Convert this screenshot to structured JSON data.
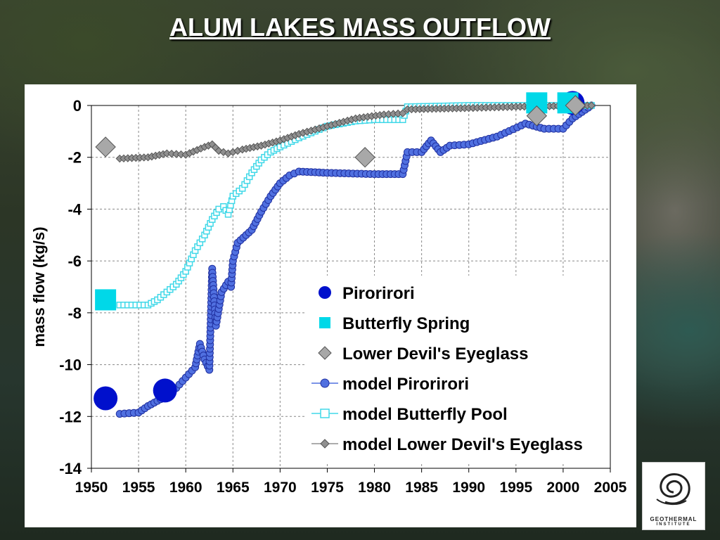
{
  "slide_title": "ALUM LAKES MASS OUTFLOW",
  "logo": {
    "text": "GEOTHERMAL",
    "subtext": "INSTITUTE"
  },
  "chart_data": {
    "type": "line",
    "title": "",
    "xlabel": "",
    "ylabel": "mass flow (kg/s)",
    "xlim": [
      1950,
      2005
    ],
    "ylim": [
      -14,
      0
    ],
    "x_ticks": [
      1950,
      1955,
      1960,
      1965,
      1970,
      1975,
      1980,
      1985,
      1990,
      1995,
      2000,
      2005
    ],
    "y_ticks": [
      0,
      -2,
      -4,
      -6,
      -8,
      -10,
      -12,
      -14
    ],
    "grid": true,
    "legend_position": "inside-lower-right",
    "series": [
      {
        "name": "Pirorirori",
        "kind": "observed",
        "marker": "circle",
        "color": "#0010cc",
        "points": [
          [
            1951.5,
            -11.3
          ],
          [
            1957.8,
            -11.0
          ],
          [
            2001.0,
            0.1
          ]
        ]
      },
      {
        "name": "Butterfly Spring",
        "kind": "observed",
        "marker": "square",
        "color": "#00d8e8",
        "points": [
          [
            1951.5,
            -7.5
          ],
          [
            1997.2,
            0.1
          ],
          [
            2000.5,
            0.1
          ]
        ]
      },
      {
        "name": "Lower Devil's Eyeglass",
        "kind": "observed",
        "marker": "diamond",
        "color": "#a8a8a8",
        "points": [
          [
            1951.5,
            -1.6
          ],
          [
            1979.0,
            -2.0
          ],
          [
            1997.2,
            -0.4
          ],
          [
            2001.3,
            0.0
          ]
        ]
      },
      {
        "name": "model Pirorirori",
        "kind": "model",
        "marker": "circle",
        "color": "#5070e0",
        "points": [
          [
            1953,
            -11.9
          ],
          [
            1955,
            -11.85
          ],
          [
            1956,
            -11.6
          ],
          [
            1957,
            -11.4
          ],
          [
            1958,
            -11.2
          ],
          [
            1959,
            -10.9
          ],
          [
            1960,
            -10.5
          ],
          [
            1961,
            -10.1
          ],
          [
            1961.5,
            -9.2
          ],
          [
            1962,
            -9.8
          ],
          [
            1962.5,
            -10.2
          ],
          [
            1962.8,
            -6.3
          ],
          [
            1963.2,
            -8.5
          ],
          [
            1963.8,
            -7.2
          ],
          [
            1964.5,
            -6.8
          ],
          [
            1964.8,
            -7.0
          ],
          [
            1965,
            -6.0
          ],
          [
            1965.5,
            -5.3
          ],
          [
            1967,
            -4.8
          ],
          [
            1968,
            -4.1
          ],
          [
            1969,
            -3.5
          ],
          [
            1970,
            -3.0
          ],
          [
            1971,
            -2.7
          ],
          [
            1972,
            -2.55
          ],
          [
            1975,
            -2.6
          ],
          [
            1980,
            -2.65
          ],
          [
            1983,
            -2.65
          ],
          [
            1983.5,
            -1.8
          ],
          [
            1985,
            -1.8
          ],
          [
            1986,
            -1.35
          ],
          [
            1987,
            -1.8
          ],
          [
            1988,
            -1.55
          ],
          [
            1990,
            -1.5
          ],
          [
            1993,
            -1.2
          ],
          [
            1996,
            -0.7
          ],
          [
            1998,
            -0.9
          ],
          [
            2000,
            -0.9
          ],
          [
            2001,
            -0.5
          ],
          [
            2002,
            -0.25
          ],
          [
            2003,
            0.0
          ]
        ]
      },
      {
        "name": "model Butterfly Pool",
        "kind": "model",
        "marker": "square-open",
        "color": "#40d8e8",
        "points": [
          [
            1953,
            -7.7
          ],
          [
            1956,
            -7.7
          ],
          [
            1957,
            -7.5
          ],
          [
            1958,
            -7.2
          ],
          [
            1959,
            -6.9
          ],
          [
            1960,
            -6.4
          ],
          [
            1961,
            -5.6
          ],
          [
            1962,
            -5.0
          ],
          [
            1962.8,
            -4.4
          ],
          [
            1963.5,
            -4.0
          ],
          [
            1964,
            -3.9
          ],
          [
            1964.5,
            -4.2
          ],
          [
            1965,
            -3.5
          ],
          [
            1966,
            -3.2
          ],
          [
            1967,
            -2.6
          ],
          [
            1968,
            -2.1
          ],
          [
            1969,
            -1.8
          ],
          [
            1970,
            -1.6
          ],
          [
            1972,
            -1.25
          ],
          [
            1975,
            -0.8
          ],
          [
            1978,
            -0.6
          ],
          [
            1980,
            -0.55
          ],
          [
            1983,
            -0.55
          ],
          [
            1983.5,
            -0.05
          ],
          [
            1990,
            0.0
          ],
          [
            2003,
            0.0
          ]
        ]
      },
      {
        "name": "model Lower Devil's Eyeglass",
        "kind": "model",
        "marker": "diamond",
        "color": "#909090",
        "points": [
          [
            1953,
            -2.05
          ],
          [
            1956,
            -2.0
          ],
          [
            1958,
            -1.85
          ],
          [
            1960,
            -1.9
          ],
          [
            1962,
            -1.6
          ],
          [
            1962.8,
            -1.5
          ],
          [
            1963.5,
            -1.75
          ],
          [
            1964.5,
            -1.85
          ],
          [
            1966,
            -1.7
          ],
          [
            1968,
            -1.55
          ],
          [
            1970,
            -1.35
          ],
          [
            1972,
            -1.1
          ],
          [
            1975,
            -0.8
          ],
          [
            1978,
            -0.5
          ],
          [
            1981,
            -0.35
          ],
          [
            1983,
            -0.3
          ],
          [
            1983.5,
            -0.15
          ],
          [
            1990,
            -0.1
          ],
          [
            1995,
            -0.05
          ],
          [
            2003,
            0.0
          ]
        ]
      }
    ]
  }
}
